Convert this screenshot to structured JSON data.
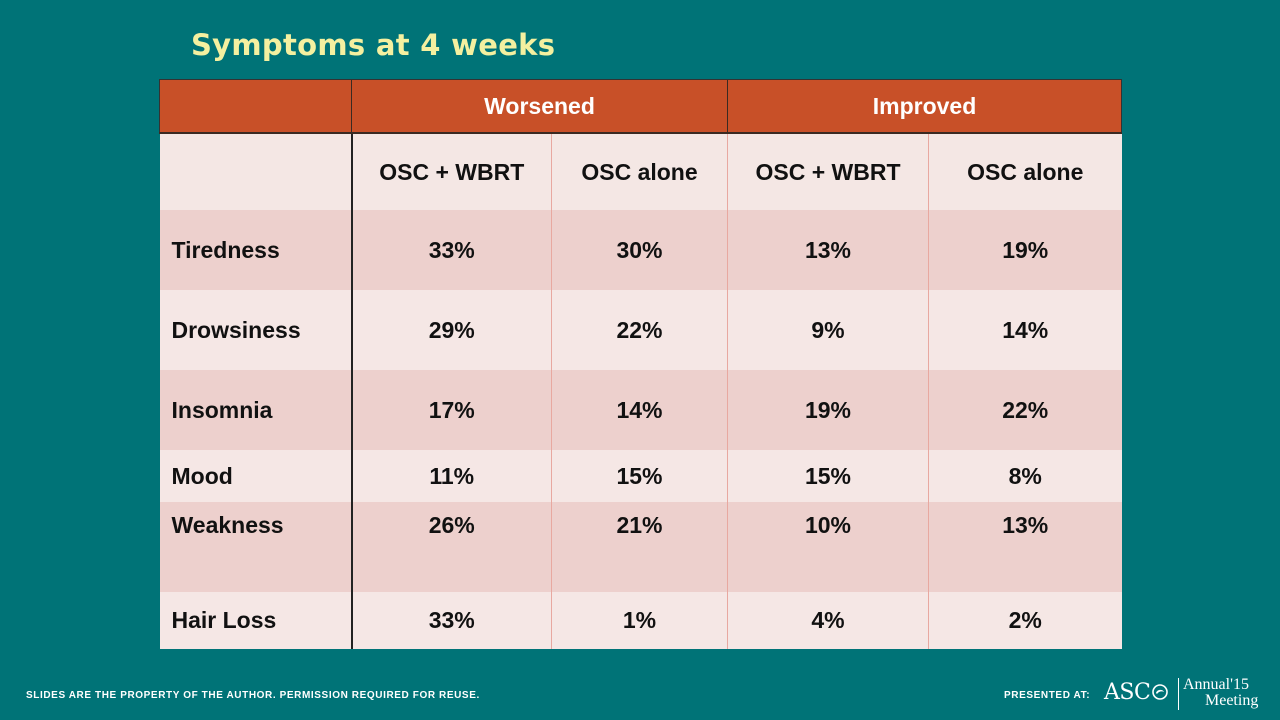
{
  "title": "Symptoms at 4 weeks",
  "table": {
    "group_headers": [
      "",
      "Worsened",
      "Improved"
    ],
    "sub_headers": [
      "",
      "OSC + WBRT",
      "OSC alone",
      "OSC + WBRT",
      "OSC alone"
    ],
    "rows": [
      {
        "label": "Tiredness",
        "values": [
          "33%",
          "30%",
          "13%",
          "19%"
        ]
      },
      {
        "label": "Drowsiness",
        "values": [
          "29%",
          "22%",
          "9%",
          "14%"
        ]
      },
      {
        "label": "Insomnia",
        "values": [
          "17%",
          "14%",
          "19%",
          "22%"
        ]
      },
      {
        "label": "Mood",
        "values": [
          "11%",
          "15%",
          "15%",
          "8%"
        ]
      },
      {
        "label": "Weakness",
        "values": [
          "26%",
          "21%",
          "10%",
          "13%"
        ]
      },
      {
        "label": "Hair Loss",
        "values": [
          "33%",
          "1%",
          "4%",
          "2%"
        ]
      }
    ]
  },
  "footer": {
    "disclaimer": "SLIDES ARE THE PROPERTY OF THE AUTHOR. PERMISSION REQUIRED FOR REUSE.",
    "presented_at": "PRESENTED AT:",
    "logo": {
      "org": "ASC",
      "annual": "Annual",
      "year": "'15",
      "meeting": "Meeting",
      "icon": "asco-swirl-icon"
    }
  },
  "colors": {
    "background": "#007377",
    "title": "#f4f0a0",
    "header": "#c85028",
    "row_dark": "#edd0cd",
    "row_light": "#f5e7e5"
  }
}
